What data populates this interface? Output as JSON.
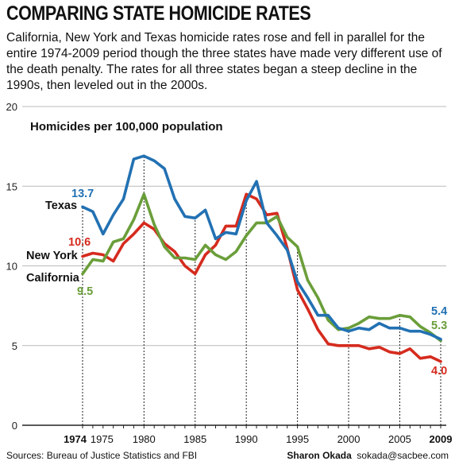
{
  "title": "COMPARING STATE HOMICIDE RATES",
  "subtitle": "California, New York and Texas homicide rates rose and fell in parallel for the entire 1974-2009 period though the three states have made very different use of the death penalty. The rates for all three states began a steep decline in the 1990s, then leveled out in the 2000s.",
  "source": "Sources: Bureau of Justice Statistics and FBI",
  "credit_author": "Sharon Okada",
  "credit_contact": "sokada@sacbee.com",
  "chart_data": {
    "type": "line",
    "ylabel": "Homicides per 100,000 population",
    "ylim": [
      0,
      20
    ],
    "yticks": [
      0,
      5,
      10,
      15,
      20
    ],
    "xlim": [
      1974,
      2009
    ],
    "xtick_labels": [
      {
        "x": 1974,
        "label": "1974",
        "bold": true
      },
      {
        "x": 1975,
        "label": "1975",
        "bold": false
      },
      {
        "x": 1980,
        "label": "1980",
        "bold": false
      },
      {
        "x": 1985,
        "label": "1985",
        "bold": false
      },
      {
        "x": 1990,
        "label": "1990",
        "bold": false
      },
      {
        "x": 1995,
        "label": "1995",
        "bold": false
      },
      {
        "x": 2000,
        "label": "2000",
        "bold": false
      },
      {
        "x": 2005,
        "label": "2005",
        "bold": false
      },
      {
        "x": 2009,
        "label": "2009",
        "bold": true
      }
    ],
    "dotted_reference_years": [
      1974,
      1980,
      1985,
      1990,
      1995,
      2000,
      2005,
      2009
    ],
    "x": [
      1974,
      1975,
      1976,
      1977,
      1978,
      1979,
      1980,
      1981,
      1982,
      1983,
      1984,
      1985,
      1986,
      1987,
      1988,
      1989,
      1990,
      1991,
      1992,
      1993,
      1994,
      1995,
      1996,
      1997,
      1998,
      1999,
      2000,
      2001,
      2002,
      2003,
      2004,
      2005,
      2006,
      2007,
      2008,
      2009
    ],
    "series": [
      {
        "name": "Texas",
        "color": "#2271b3",
        "start_label": "13.7",
        "end_label": "5.4",
        "values": [
          13.7,
          13.4,
          12.0,
          13.2,
          14.2,
          16.7,
          16.9,
          16.6,
          16.1,
          14.2,
          13.1,
          13.0,
          13.5,
          11.7,
          12.1,
          12.0,
          14.1,
          15.3,
          12.7,
          11.9,
          11.0,
          9.0,
          8.0,
          6.9,
          6.9,
          6.1,
          5.9,
          6.1,
          6.0,
          6.4,
          6.1,
          6.1,
          5.9,
          5.9,
          5.7,
          5.4
        ]
      },
      {
        "name": "New York",
        "color": "#d52b1e",
        "start_label": "10.6",
        "end_label": "4.0",
        "values": [
          10.6,
          10.8,
          10.7,
          10.3,
          11.4,
          12.0,
          12.7,
          12.3,
          11.4,
          10.9,
          10.0,
          9.5,
          10.7,
          11.3,
          12.5,
          12.5,
          14.5,
          14.2,
          13.2,
          13.3,
          11.1,
          8.5,
          7.3,
          6.0,
          5.1,
          5.0,
          5.0,
          5.0,
          4.8,
          4.9,
          4.6,
          4.5,
          4.8,
          4.2,
          4.3,
          4.0
        ]
      },
      {
        "name": "California",
        "color": "#6a9e3a",
        "start_label": "9.5",
        "end_label": "5.3",
        "values": [
          9.5,
          10.4,
          10.3,
          11.5,
          11.7,
          12.9,
          14.5,
          12.6,
          11.2,
          10.5,
          10.5,
          10.4,
          11.3,
          10.7,
          10.4,
          10.9,
          11.9,
          12.7,
          12.7,
          13.1,
          11.8,
          11.2,
          9.1,
          8.0,
          6.6,
          6.0,
          6.1,
          6.4,
          6.8,
          6.7,
          6.7,
          6.9,
          6.8,
          6.2,
          5.8,
          5.3
        ]
      }
    ]
  }
}
